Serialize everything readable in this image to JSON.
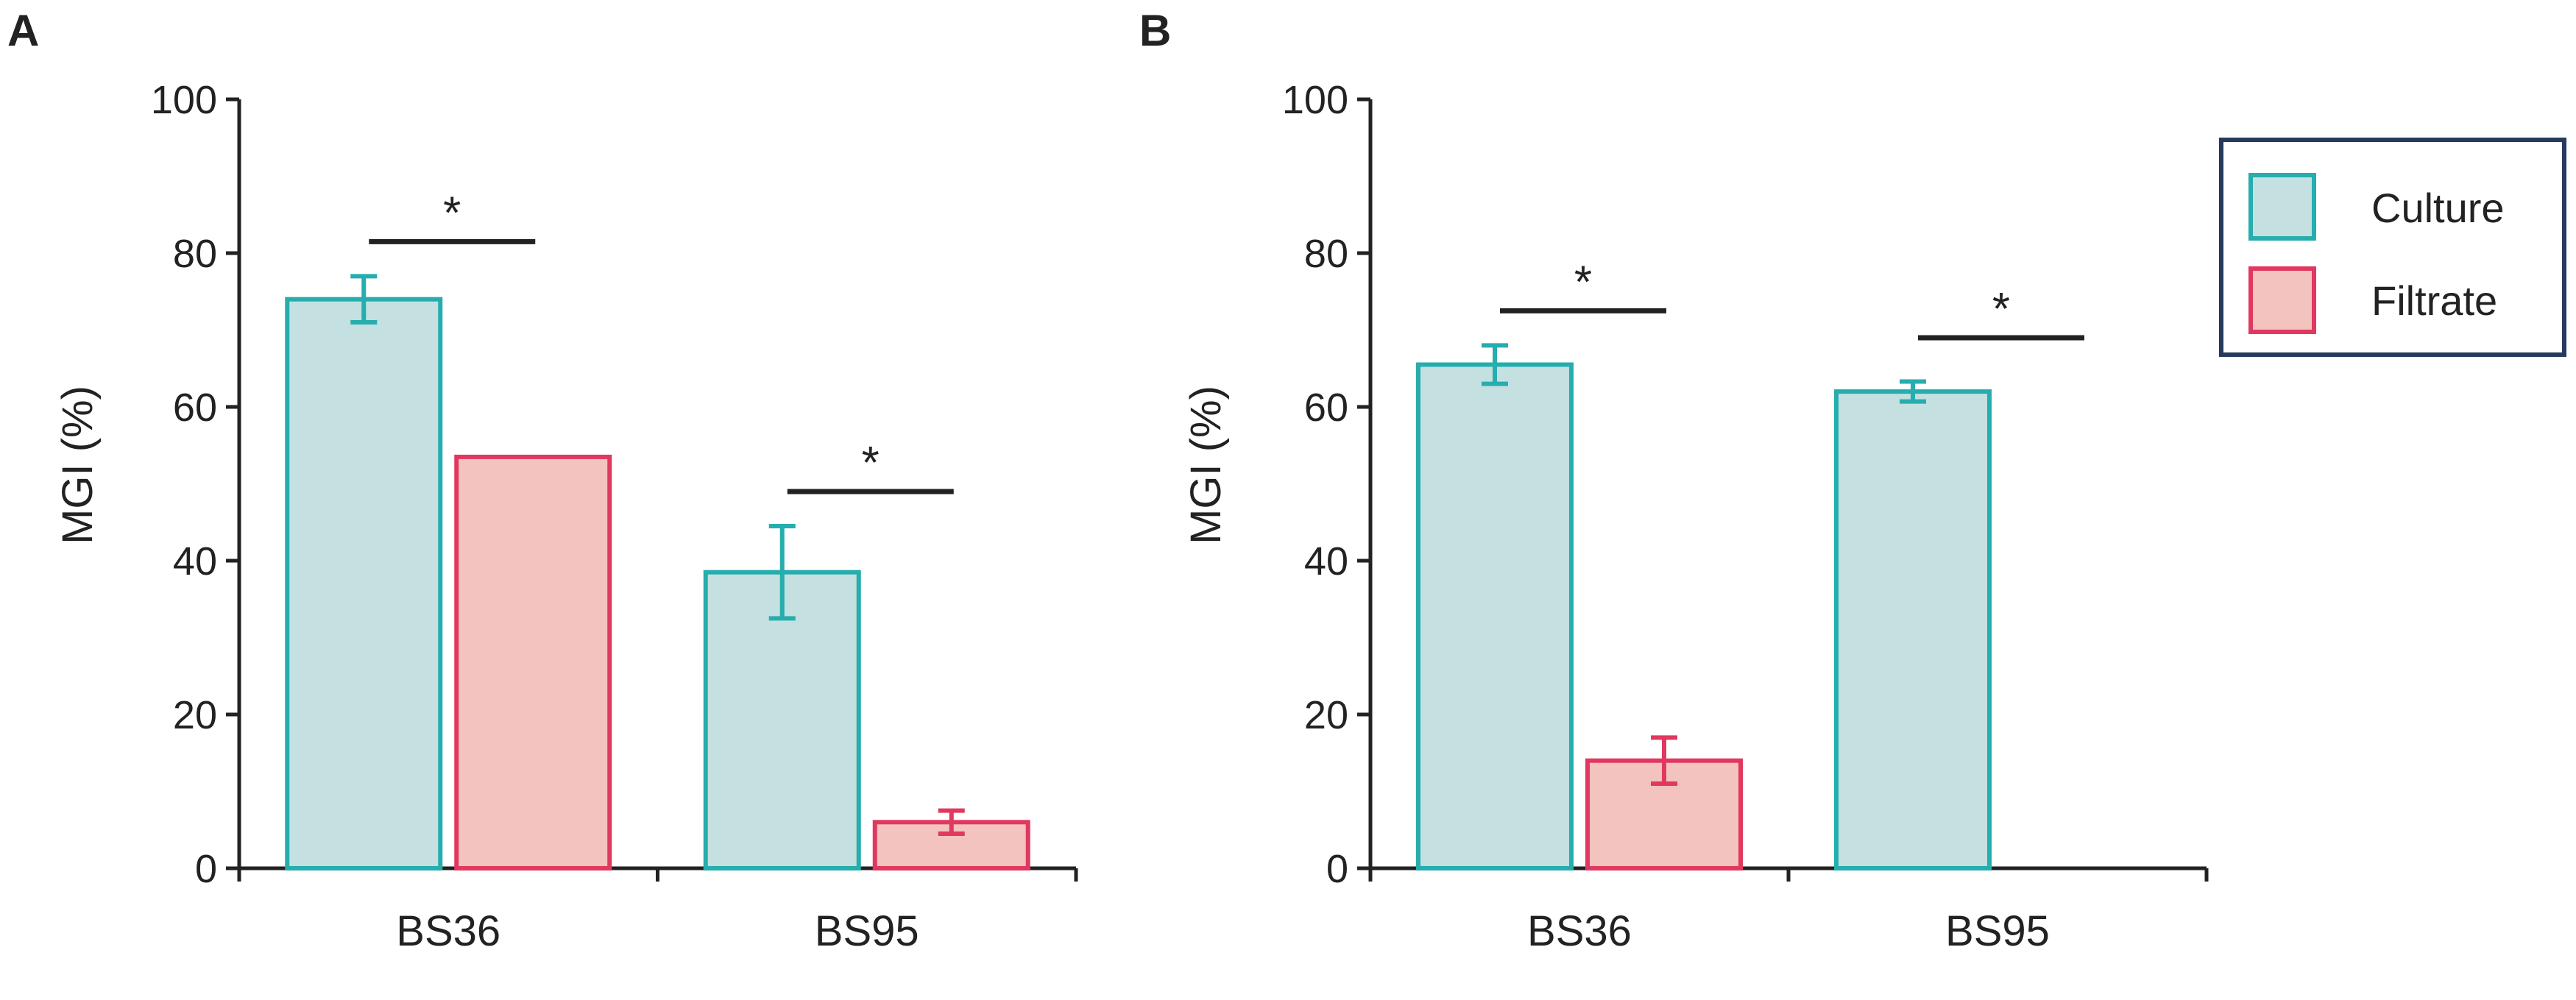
{
  "colors": {
    "culture_fill": "#c4e0e1",
    "culture_stroke": "#26adad",
    "filtrate_fill": "#f3c3c0",
    "filtrate_stroke": "#e0385f",
    "axis": "#222222",
    "legend_border": "#253a5c"
  },
  "legend": {
    "items": [
      {
        "label": "Culture",
        "key": "culture"
      },
      {
        "label": "Filtrate",
        "key": "filtrate"
      }
    ]
  },
  "chart_data": [
    {
      "panel": "A",
      "type": "bar",
      "ylabel": "MGI (%)",
      "xlabel": "",
      "ylim": [
        0,
        100
      ],
      "yticks": [
        "0",
        "20",
        "40",
        "60",
        "80",
        "100"
      ],
      "categories": [
        "BS36",
        "BS95"
      ],
      "series": [
        {
          "name": "Culture",
          "key": "culture",
          "values": [
            74,
            38.5
          ],
          "errors": [
            3,
            6
          ]
        },
        {
          "name": "Filtrate",
          "key": "filtrate",
          "values": [
            53.5,
            6
          ],
          "errors": [
            0,
            1.5
          ]
        }
      ],
      "significance": [
        {
          "category": "BS36",
          "label": "*",
          "y": 81.5
        },
        {
          "category": "BS95",
          "label": "*",
          "y": 49
        }
      ]
    },
    {
      "panel": "B",
      "type": "bar",
      "ylabel": "MGI (%)",
      "xlabel": "",
      "ylim": [
        0,
        100
      ],
      "yticks": [
        "0",
        "20",
        "40",
        "60",
        "80",
        "100"
      ],
      "categories": [
        "BS36",
        "BS95"
      ],
      "series": [
        {
          "name": "Culture",
          "key": "culture",
          "values": [
            65.5,
            62
          ],
          "errors": [
            2.5,
            1.3
          ]
        },
        {
          "name": "Filtrate",
          "key": "filtrate",
          "values": [
            14,
            null
          ],
          "errors": [
            3,
            null
          ]
        }
      ],
      "significance": [
        {
          "category": "BS36",
          "label": "*",
          "y": 72.5
        },
        {
          "category": "BS95",
          "label": "*",
          "y": 69
        }
      ]
    }
  ]
}
